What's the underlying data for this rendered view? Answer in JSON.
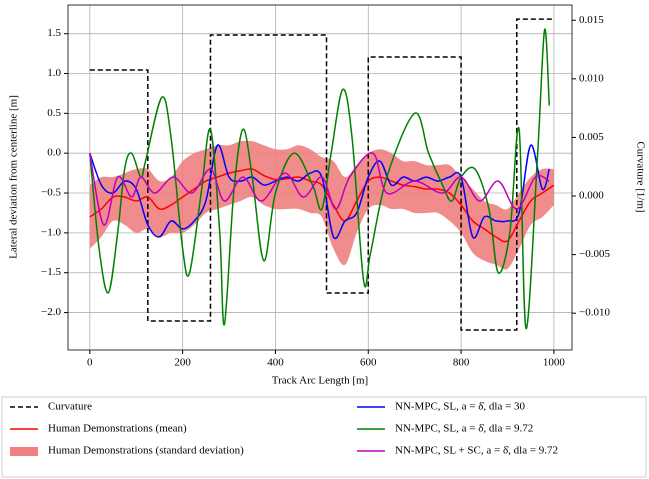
{
  "chart_data": {
    "type": "line",
    "xlabel": "Track Arc Length [m]",
    "ylabel": "Lateral deviation from centerline [m]",
    "y2label": "Curvature [1/m]",
    "xlim": [
      -47,
      1039
    ],
    "ylim": [
      -2.47,
      1.86
    ],
    "y2lim": [
      -0.01314,
      0.0163
    ],
    "xticks": [
      0,
      200,
      400,
      600,
      800,
      1000
    ],
    "yticks": [
      {
        "value": -2.0,
        "label": "−2.0"
      },
      {
        "value": -1.5,
        "label": "−1.5"
      },
      {
        "value": -1.0,
        "label": "−1.0"
      },
      {
        "value": -0.5,
        "label": "−0.5"
      },
      {
        "value": 0.0,
        "label": "0.0"
      },
      0.5,
      {
        "value": 1.0,
        "label": "1.0"
      },
      1.5
    ],
    "y2ticks": [
      {
        "value": -0.01,
        "label": "−0.010"
      },
      {
        "value": -0.005,
        "label": "−0.005"
      },
      {
        "value": 0.0,
        "label": "0.000"
      },
      {
        "value": 0.005,
        "label": "0.005"
      },
      {
        "value": 0.01,
        "label": "0.010"
      },
      {
        "value": 0.015,
        "label": "0.015"
      }
    ],
    "grid": true,
    "legend": "bottom",
    "series": [
      {
        "name": "Curvature",
        "color": "#000000",
        "linestyle": "dashed",
        "axis": "y2",
        "step": true,
        "x": [
          0,
          125,
          125,
          260,
          260,
          510,
          510,
          600,
          600,
          800,
          800,
          920,
          920,
          1000
        ],
        "values": [
          0.01075,
          0.01075,
          -0.01067,
          -0.01067,
          0.01374,
          0.01374,
          -0.00828,
          -0.00828,
          0.01186,
          0.01186,
          -0.01143,
          -0.01143,
          0.0151,
          0.0151
        ]
      },
      {
        "name": "Human Demonstrations (mean)",
        "color": "#ff0000",
        "x": [
          0,
          25,
          50,
          75,
          100,
          125,
          150,
          175,
          200,
          225,
          250,
          275,
          300,
          325,
          350,
          375,
          400,
          425,
          450,
          475,
          500,
          525,
          550,
          575,
          600,
          625,
          650,
          675,
          700,
          725,
          750,
          775,
          800,
          825,
          850,
          875,
          900,
          925,
          950,
          975,
          1000
        ],
        "values": [
          -0.8,
          -0.7,
          -0.55,
          -0.55,
          -0.6,
          -0.55,
          -0.7,
          -0.65,
          -0.55,
          -0.45,
          -0.35,
          -0.3,
          -0.25,
          -0.22,
          -0.2,
          -0.28,
          -0.33,
          -0.32,
          -0.3,
          -0.35,
          -0.4,
          -0.65,
          -0.85,
          -0.6,
          -0.35,
          -0.3,
          -0.35,
          -0.4,
          -0.42,
          -0.45,
          -0.45,
          -0.5,
          -0.65,
          -0.85,
          -0.95,
          -1.05,
          -1.1,
          -0.85,
          -0.6,
          -0.5,
          -0.4
        ]
      },
      {
        "name": "Human Demonstrations (standard deviation)",
        "color": "#f08080",
        "band": true,
        "x": [
          0,
          25,
          50,
          75,
          100,
          125,
          150,
          175,
          200,
          225,
          250,
          275,
          300,
          325,
          350,
          375,
          400,
          425,
          450,
          475,
          500,
          525,
          550,
          575,
          600,
          625,
          650,
          675,
          700,
          725,
          750,
          775,
          800,
          825,
          850,
          875,
          900,
          925,
          950,
          975,
          1000
        ],
        "upper": [
          -0.4,
          -0.3,
          -0.3,
          -0.25,
          -0.2,
          -0.2,
          -0.35,
          -0.3,
          -0.1,
          0.0,
          0.05,
          0.1,
          0.1,
          0.15,
          0.15,
          0.1,
          0.05,
          0.05,
          0.1,
          0.05,
          -0.05,
          -0.1,
          -0.3,
          -0.15,
          0.0,
          0.05,
          0.0,
          -0.1,
          -0.1,
          -0.15,
          -0.15,
          -0.15,
          -0.3,
          -0.45,
          -0.6,
          -0.65,
          -0.7,
          -0.5,
          -0.3,
          -0.2,
          -0.2
        ],
        "lower": [
          -1.2,
          -1.05,
          -0.85,
          -0.9,
          -1.0,
          -0.95,
          -1.05,
          -1.0,
          -1.0,
          -0.9,
          -0.75,
          -0.7,
          -0.65,
          -0.6,
          -0.55,
          -0.65,
          -0.7,
          -0.7,
          -0.7,
          -0.75,
          -0.8,
          -1.2,
          -1.4,
          -1.0,
          -0.7,
          -0.65,
          -0.7,
          -0.7,
          -0.75,
          -0.75,
          -0.75,
          -0.85,
          -1.0,
          -1.25,
          -1.35,
          -1.4,
          -1.45,
          -1.2,
          -0.9,
          -0.8,
          -0.65
        ]
      },
      {
        "name": "NN-MPC, SL, a = δ̇, dla = 30",
        "color": "#0000ff",
        "x": [
          0,
          25,
          50,
          75,
          100,
          125,
          150,
          175,
          200,
          225,
          250,
          275,
          300,
          325,
          350,
          375,
          400,
          425,
          450,
          475,
          500,
          525,
          550,
          575,
          600,
          625,
          650,
          675,
          700,
          725,
          750,
          775,
          800,
          825,
          850,
          875,
          900,
          925,
          950,
          975,
          990
        ],
        "values": [
          0.0,
          -0.4,
          -0.5,
          -0.35,
          -0.45,
          -0.9,
          -1.05,
          -0.85,
          -0.95,
          -0.85,
          -0.6,
          0.1,
          -0.3,
          -0.35,
          -0.3,
          -0.4,
          -0.35,
          -0.3,
          -0.35,
          -0.25,
          -0.3,
          -1.05,
          -0.85,
          -0.75,
          -0.3,
          -0.1,
          -0.4,
          -0.3,
          -0.35,
          -0.3,
          -0.35,
          -0.3,
          -0.3,
          -1.05,
          -0.8,
          -0.85,
          -0.85,
          -0.75,
          0.1,
          -0.45,
          -0.2
        ]
      },
      {
        "name": "NN-MPC, SL, a = δ̇, dla = 9.72",
        "color": "#008000",
        "x": [
          0,
          20,
          40,
          60,
          75,
          90,
          110,
          120,
          155,
          175,
          200,
          215,
          240,
          260,
          280,
          290,
          310,
          330,
          350,
          375,
          400,
          440,
          480,
          500,
          520,
          545,
          565,
          590,
          605,
          640,
          700,
          730,
          760,
          780,
          800,
          830,
          860,
          880,
          905,
          925,
          940,
          965,
          980,
          990
        ],
        "values": [
          0.0,
          -1.2,
          -1.75,
          -1.0,
          -0.2,
          0.0,
          -0.3,
          -0.1,
          0.7,
          0.2,
          -1.2,
          -1.5,
          -0.5,
          0.3,
          -1.0,
          -2.15,
          -0.5,
          0.3,
          -0.3,
          -1.35,
          -0.5,
          0.0,
          -0.4,
          -0.7,
          0.0,
          0.8,
          0.2,
          -1.6,
          -1.25,
          -0.3,
          0.5,
          0.0,
          -0.4,
          -0.6,
          -0.3,
          -0.2,
          -0.7,
          -1.5,
          -1.0,
          0.3,
          -2.2,
          0.0,
          1.55,
          0.6
        ]
      },
      {
        "name": "NN-MPC, SL + SC, a = δ̇, dla = 9.72",
        "color": "#bf00bf",
        "x": [
          0,
          30,
          60,
          90,
          110,
          140,
          180,
          220,
          260,
          290,
          330,
          370,
          420,
          460,
          500,
          530,
          560,
          610,
          640,
          700,
          760,
          800,
          840,
          880,
          920,
          960,
          990
        ],
        "values": [
          0.0,
          -0.9,
          -0.3,
          -0.55,
          -0.3,
          -0.5,
          -0.3,
          -0.5,
          -0.2,
          -0.6,
          -0.3,
          -0.6,
          -0.25,
          -0.55,
          -0.3,
          -0.7,
          -0.3,
          0.0,
          -0.5,
          -0.35,
          -0.5,
          -0.3,
          -0.6,
          -0.35,
          -0.7,
          -0.3,
          -0.35
        ]
      }
    ]
  }
}
